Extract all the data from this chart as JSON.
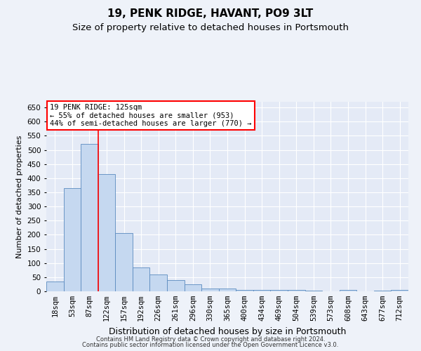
{
  "title1": "19, PENK RIDGE, HAVANT, PO9 3LT",
  "title2": "Size of property relative to detached houses in Portsmouth",
  "xlabel": "Distribution of detached houses by size in Portsmouth",
  "ylabel": "Number of detached properties",
  "footer1": "Contains HM Land Registry data © Crown copyright and database right 2024.",
  "footer2": "Contains public sector information licensed under the Open Government Licence v3.0.",
  "annotation_line1": "19 PENK RIDGE: 125sqm",
  "annotation_line2": "← 55% of detached houses are smaller (953)",
  "annotation_line3": "44% of semi-detached houses are larger (770) →",
  "bar_labels": [
    "18sqm",
    "53sqm",
    "87sqm",
    "122sqm",
    "157sqm",
    "192sqm",
    "226sqm",
    "261sqm",
    "296sqm",
    "330sqm",
    "365sqm",
    "400sqm",
    "434sqm",
    "469sqm",
    "504sqm",
    "539sqm",
    "573sqm",
    "608sqm",
    "643sqm",
    "677sqm",
    "712sqm"
  ],
  "bar_values": [
    35,
    365,
    520,
    415,
    205,
    85,
    60,
    40,
    25,
    10,
    10,
    5,
    5,
    5,
    5,
    2,
    0,
    5,
    0,
    2,
    5
  ],
  "bar_color": "#c5d8f0",
  "bar_edge_color": "#5a8abf",
  "red_line_x": 3.0,
  "ylim": [
    0,
    670
  ],
  "yticks": [
    0,
    50,
    100,
    150,
    200,
    250,
    300,
    350,
    400,
    450,
    500,
    550,
    600,
    650
  ],
  "background_color": "#eef2f9",
  "plot_bg_color": "#e4eaf6",
  "grid_color": "#d0d8ea",
  "title_fontsize": 11,
  "subtitle_fontsize": 9.5,
  "tick_fontsize": 7.5,
  "ylabel_fontsize": 8,
  "xlabel_fontsize": 9
}
